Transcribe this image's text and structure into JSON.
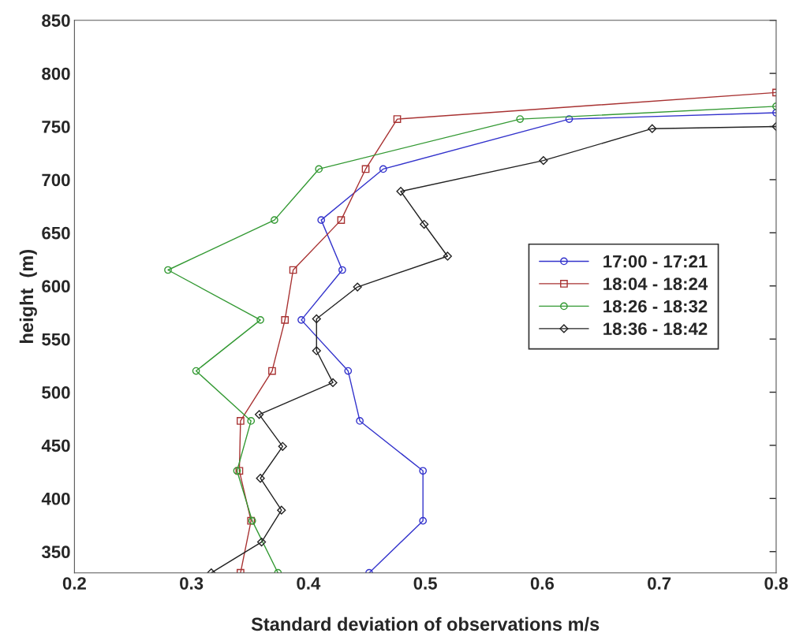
{
  "chart_data": {
    "type": "line",
    "xlabel": "Standard deviation of observations m/s",
    "ylabel": "height  (m)",
    "xlim": [
      0.2,
      0.8
    ],
    "xticks": [
      0.2,
      0.3,
      0.4,
      0.5,
      0.6,
      0.7,
      0.8
    ],
    "ylim": [
      330,
      850
    ],
    "yticks": [
      350,
      400,
      450,
      500,
      550,
      600,
      650,
      700,
      750,
      800,
      850
    ],
    "grid": false,
    "legend": "right",
    "line_style": "solid",
    "series": [
      {
        "name": "17:00 - 17:21",
        "color": "#3333cc",
        "marker": "circle",
        "x": [
          0.452,
          0.498,
          0.498,
          0.444,
          0.434,
          0.394,
          0.429,
          0.411,
          0.464,
          0.623,
          0.8
        ],
        "values": [
          330,
          379,
          426,
          473,
          520,
          568,
          615,
          662,
          710,
          757,
          763
        ]
      },
      {
        "name": "18:04 - 18:24",
        "color": "#a83232",
        "marker": "square",
        "x": [
          0.342,
          0.351,
          0.341,
          0.342,
          0.369,
          0.38,
          0.387,
          0.428,
          0.449,
          0.476,
          0.8
        ],
        "values": [
          330,
          379,
          426,
          473,
          520,
          568,
          615,
          662,
          710,
          757,
          782
        ]
      },
      {
        "name": "18:26 - 18:32",
        "color": "#339933",
        "marker": "circle",
        "x": [
          0.374,
          0.352,
          0.339,
          0.351,
          0.304,
          0.359,
          0.28,
          0.371,
          0.409,
          0.581,
          0.8
        ],
        "values": [
          330,
          379,
          426,
          473,
          520,
          568,
          615,
          662,
          710,
          757,
          769
        ]
      },
      {
        "name": "18:36 - 18:42",
        "color": "#222222",
        "marker": "diamond",
        "x": [
          0.317,
          0.36,
          0.377,
          0.359,
          0.378,
          0.358,
          0.421,
          0.407,
          0.407,
          0.442,
          0.519,
          0.499,
          0.479,
          0.601,
          0.694,
          0.8
        ],
        "values": [
          330,
          359,
          389,
          419,
          449,
          479,
          509,
          539,
          569,
          599,
          628,
          658,
          689,
          718,
          748,
          750
        ]
      }
    ]
  }
}
